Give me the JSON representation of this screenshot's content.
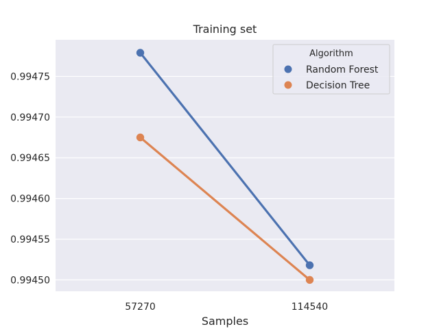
{
  "chart_data": {
    "type": "line",
    "title": "Training set",
    "xlabel": "Samples",
    "ylabel": "",
    "categories": [
      "57270",
      "114540"
    ],
    "ylim": [
      0.994486,
      0.994795
    ],
    "yticks": [
      0.9945,
      0.99455,
      0.9946,
      0.99465,
      0.9947,
      0.99475
    ],
    "ytick_labels": [
      "0.99450",
      "0.99455",
      "0.99460",
      "0.99465",
      "0.99470",
      "0.99475"
    ],
    "grid": true,
    "legend": {
      "title": "Algorithm",
      "placement": "top-right"
    },
    "series": [
      {
        "name": "Random Forest",
        "color": "#4c72b0",
        "values": [
          0.994779,
          0.994518
        ]
      },
      {
        "name": "Decision Tree",
        "color": "#dd8452",
        "values": [
          0.994675,
          0.9945
        ]
      }
    ]
  }
}
